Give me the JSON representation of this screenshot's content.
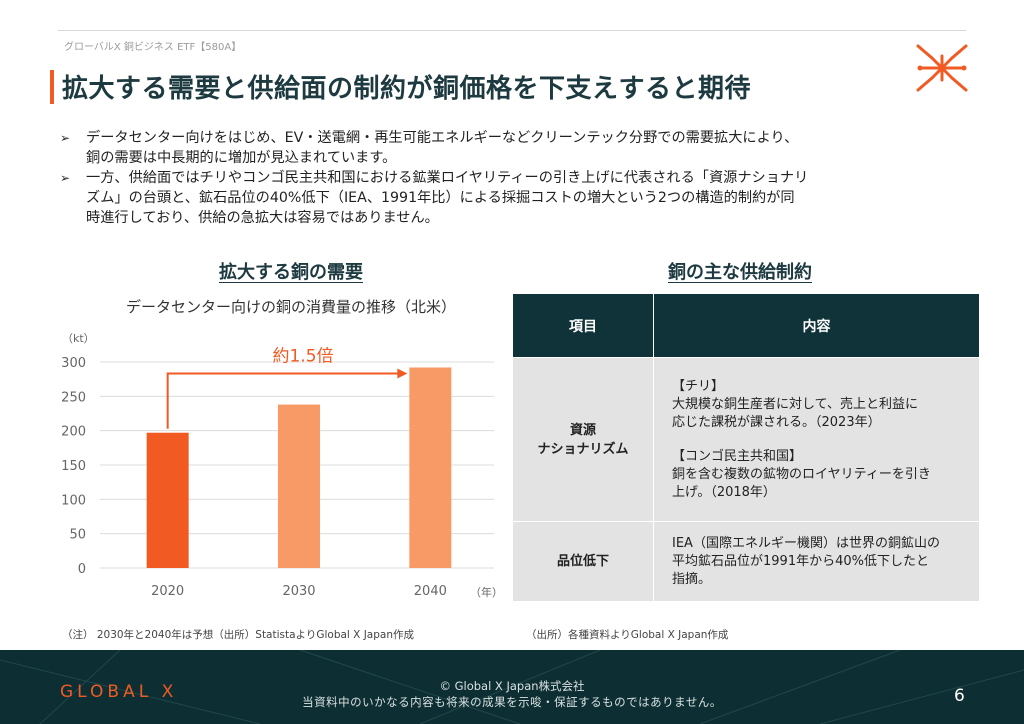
{
  "header": {
    "note": "グローバルX 銅ビジネス ETF【580A】"
  },
  "title": "拡大する需要と供給面の制約が銅価格を下支えすると期待",
  "bullets": [
    {
      "line1": "データセンター向けをはじめ、EV・送電網・再生可能エネルギーなどクリーンテック分野での需要拡大により、",
      "line2": "銅の需要は中長期的に増加が見込まれています。"
    },
    {
      "line1": "一方、供給面ではチリやコンゴ民主共和国における鉱業ロイヤリティーの引き上げに代表される「資源ナショナリ",
      "line2": "ズム」の台頭と、鉱石品位の40%低下（IEA、1991年比）による採掘コストの増大という2つの構造的制約が同",
      "line3": "時進行しており、供給の急拡大は容易ではありません。"
    }
  ],
  "chart_section": {
    "heading": "拡大する銅の需要"
  },
  "chart_data": {
    "type": "bar",
    "title": "データセンター向けの銅の消費量の推移（北米）",
    "unit_label": "（kt）",
    "x_unit_label": "（年）",
    "categories": [
      "2020",
      "2030",
      "2040"
    ],
    "values": [
      197,
      238,
      292
    ],
    "yticks": [
      0,
      50,
      100,
      150,
      200,
      250,
      300
    ],
    "ylim": [
      0,
      300
    ],
    "bar_colors": [
      "#f15a22",
      "#f79a66",
      "#f79a66"
    ],
    "annotation": "約1.5倍",
    "annotation_color": "#f15a22"
  },
  "table_section": {
    "heading": "銅の主な供給制約",
    "headers": [
      "項目",
      "内容"
    ],
    "rows": [
      {
        "item_line1": "資源",
        "item_line2": "ナショナリズム",
        "lines": [
          "【チリ】",
          "大規模な銅生産者に対して、売上と利益に",
          "応じた課税が課される。（2023年）",
          "",
          "【コンゴ民主共和国】",
          "銅を含む複数の鉱物のロイヤリティーを引き",
          "上げ。（2018年）"
        ]
      },
      {
        "item_line1": "品位低下",
        "item_line2": "",
        "lines": [
          "IEA（国際エネルギー機関）は世界の銅鉱山の",
          "平均鉱石品位が1991年から40%低下したと",
          "指摘。"
        ]
      }
    ]
  },
  "notes": {
    "left": "（注） 2030年と2040年は予想（出所）StatistaよりGlobal X Japan作成",
    "right": "（出所）各種資料よりGlobal X Japan作成"
  },
  "footer": {
    "logo": "GLOBAL X",
    "copyright": "© Global X Japan株式会社",
    "disclaimer": "当資料中のいかなる内容も将来の成果を示唆・保証するものではありません。",
    "page_number": "6"
  },
  "colors": {
    "accent": "#f15a22",
    "accent_light": "#f79a66",
    "navy": "#0f3339",
    "title": "#1d3a40"
  }
}
